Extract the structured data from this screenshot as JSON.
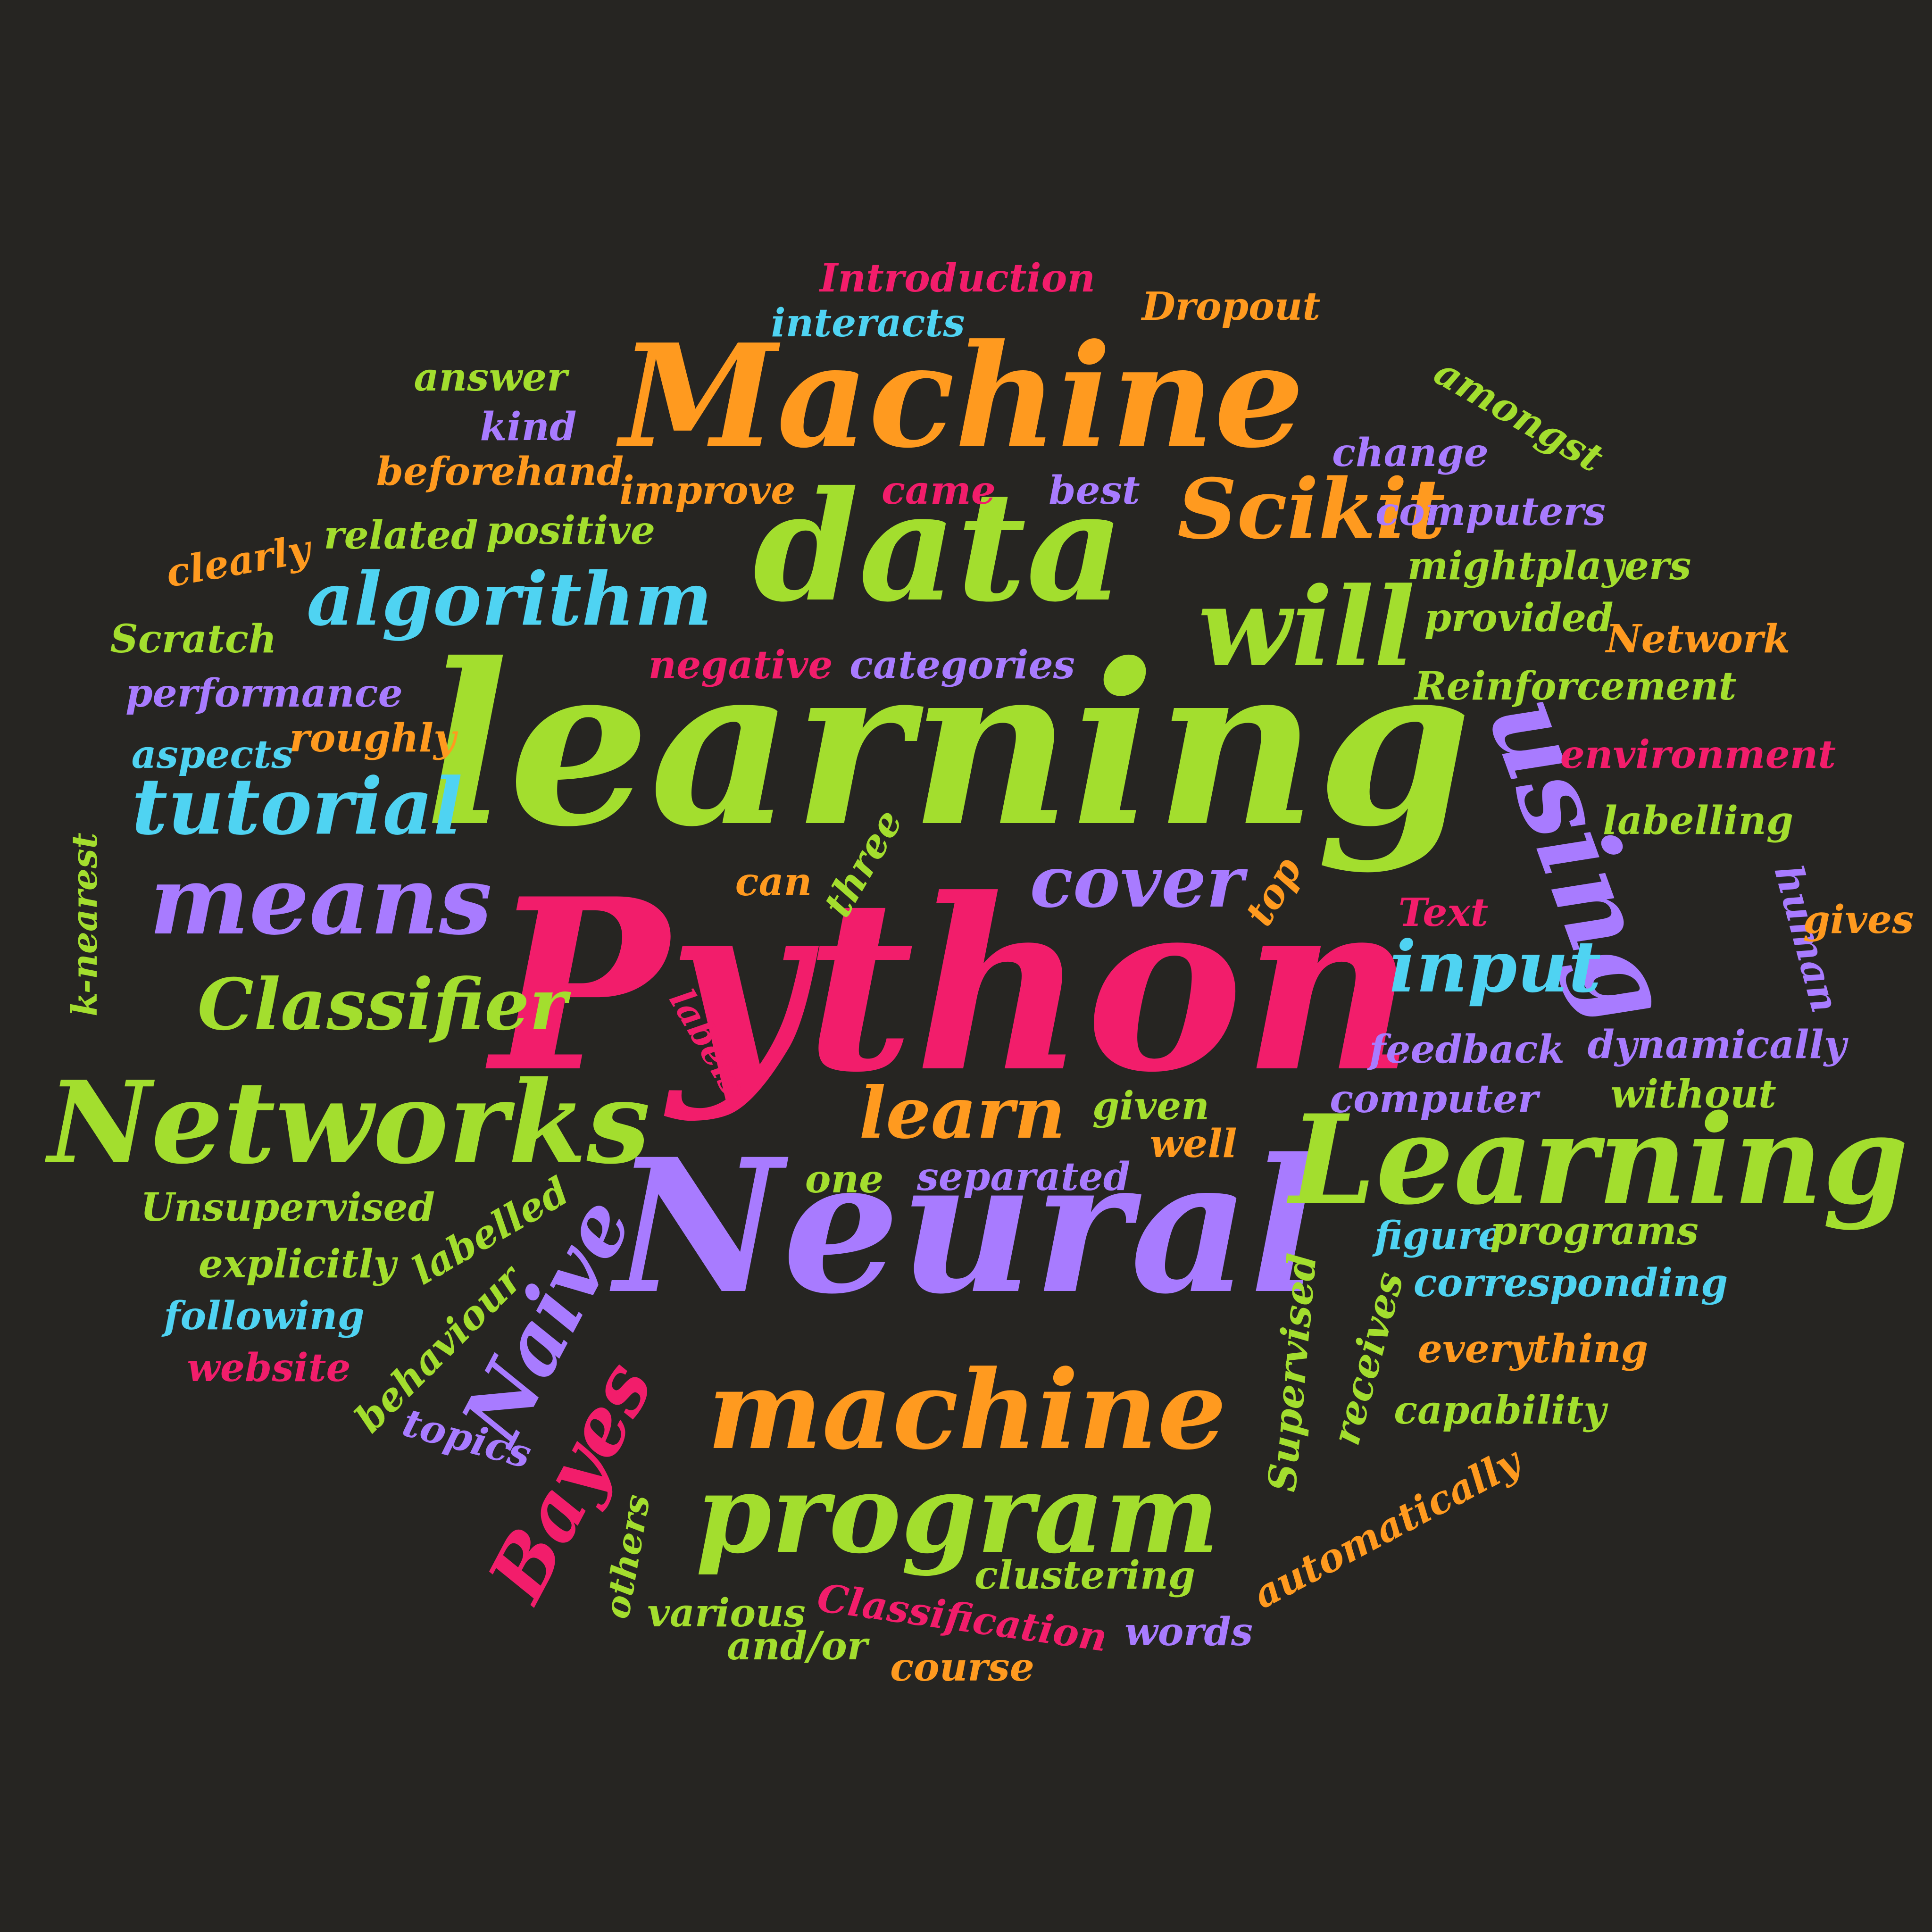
{
  "palette": {
    "background": "#262522",
    "green": "#A3DE2E",
    "orange": "#FF9A1F",
    "pink": "#F21D6B",
    "purple": "#A87BFF",
    "cyan": "#4FD3F2"
  },
  "words": [
    {
      "text": "learning",
      "color": "green"
    },
    {
      "text": "Python",
      "color": "pink"
    },
    {
      "text": "Neural",
      "color": "purple"
    },
    {
      "text": "Machine",
      "color": "orange"
    },
    {
      "text": "data",
      "color": "green"
    },
    {
      "text": "Learning",
      "color": "green"
    },
    {
      "text": "Networks",
      "color": "green"
    },
    {
      "text": "machine",
      "color": "orange"
    },
    {
      "text": "program",
      "color": "green"
    },
    {
      "text": "using",
      "color": "purple"
    },
    {
      "text": "will",
      "color": "green"
    },
    {
      "text": "means",
      "color": "purple"
    },
    {
      "text": "algorithm",
      "color": "cyan"
    },
    {
      "text": "tutorial",
      "color": "cyan"
    },
    {
      "text": "Classifier",
      "color": "green"
    },
    {
      "text": "Scikit",
      "color": "orange"
    },
    {
      "text": "Naive",
      "color": "purple"
    },
    {
      "text": "Bayes",
      "color": "pink"
    },
    {
      "text": "cover",
      "color": "purple"
    },
    {
      "text": "input",
      "color": "cyan"
    },
    {
      "text": "learn",
      "color": "orange"
    },
    {
      "text": "Introduction",
      "color": "pink"
    },
    {
      "text": "interacts",
      "color": "cyan"
    },
    {
      "text": "Dropout",
      "color": "orange"
    },
    {
      "text": "answer",
      "color": "green"
    },
    {
      "text": "kind",
      "color": "purple"
    },
    {
      "text": "beforehand",
      "color": "orange"
    },
    {
      "text": "improve",
      "color": "orange"
    },
    {
      "text": "came",
      "color": "pink"
    },
    {
      "text": "best",
      "color": "purple"
    },
    {
      "text": "amongst",
      "color": "green"
    },
    {
      "text": "change",
      "color": "purple"
    },
    {
      "text": "computers",
      "color": "purple"
    },
    {
      "text": "might",
      "color": "green"
    },
    {
      "text": "players",
      "color": "green"
    },
    {
      "text": "clearly",
      "color": "orange"
    },
    {
      "text": "related",
      "color": "green"
    },
    {
      "text": "positive",
      "color": "green"
    },
    {
      "text": "provided",
      "color": "green"
    },
    {
      "text": "Network",
      "color": "orange"
    },
    {
      "text": "Scratch",
      "color": "green"
    },
    {
      "text": "negative",
      "color": "pink"
    },
    {
      "text": "categories",
      "color": "purple"
    },
    {
      "text": "Reinforcement",
      "color": "green"
    },
    {
      "text": "performance",
      "color": "purple"
    },
    {
      "text": "aspects",
      "color": "cyan"
    },
    {
      "text": "roughly",
      "color": "orange"
    },
    {
      "text": "environment",
      "color": "pink"
    },
    {
      "text": "labelling",
      "color": "green"
    },
    {
      "text": "k-nearest",
      "color": "green"
    },
    {
      "text": "three",
      "color": "green"
    },
    {
      "text": "can",
      "color": "orange"
    },
    {
      "text": "top",
      "color": "orange"
    },
    {
      "text": "human",
      "color": "purple"
    },
    {
      "text": "gives",
      "color": "orange"
    },
    {
      "text": "Text",
      "color": "pink"
    },
    {
      "text": "labels",
      "color": "pink"
    },
    {
      "text": "feedback",
      "color": "purple"
    },
    {
      "text": "dynamically",
      "color": "purple"
    },
    {
      "text": "computer",
      "color": "purple"
    },
    {
      "text": "without",
      "color": "green"
    },
    {
      "text": "given",
      "color": "green"
    },
    {
      "text": "well",
      "color": "orange"
    },
    {
      "text": "one",
      "color": "green"
    },
    {
      "text": "separated",
      "color": "purple"
    },
    {
      "text": "Unsupervised",
      "color": "green"
    },
    {
      "text": "labelled",
      "color": "green"
    },
    {
      "text": "explicitly",
      "color": "green"
    },
    {
      "text": "following",
      "color": "cyan"
    },
    {
      "text": "behaviour",
      "color": "green"
    },
    {
      "text": "website",
      "color": "pink"
    },
    {
      "text": "topics",
      "color": "purple"
    },
    {
      "text": "figure",
      "color": "cyan"
    },
    {
      "text": "programs",
      "color": "green"
    },
    {
      "text": "corresponding",
      "color": "cyan"
    },
    {
      "text": "Supervised",
      "color": "green"
    },
    {
      "text": "receives",
      "color": "green"
    },
    {
      "text": "everything",
      "color": "orange"
    },
    {
      "text": "capability",
      "color": "green"
    },
    {
      "text": "automatically",
      "color": "orange"
    },
    {
      "text": "others",
      "color": "green"
    },
    {
      "text": "clustering",
      "color": "green"
    },
    {
      "text": "various",
      "color": "green"
    },
    {
      "text": "Classification",
      "color": "pink"
    },
    {
      "text": "words",
      "color": "purple"
    },
    {
      "text": "and/or",
      "color": "green"
    },
    {
      "text": "course",
      "color": "orange"
    }
  ]
}
